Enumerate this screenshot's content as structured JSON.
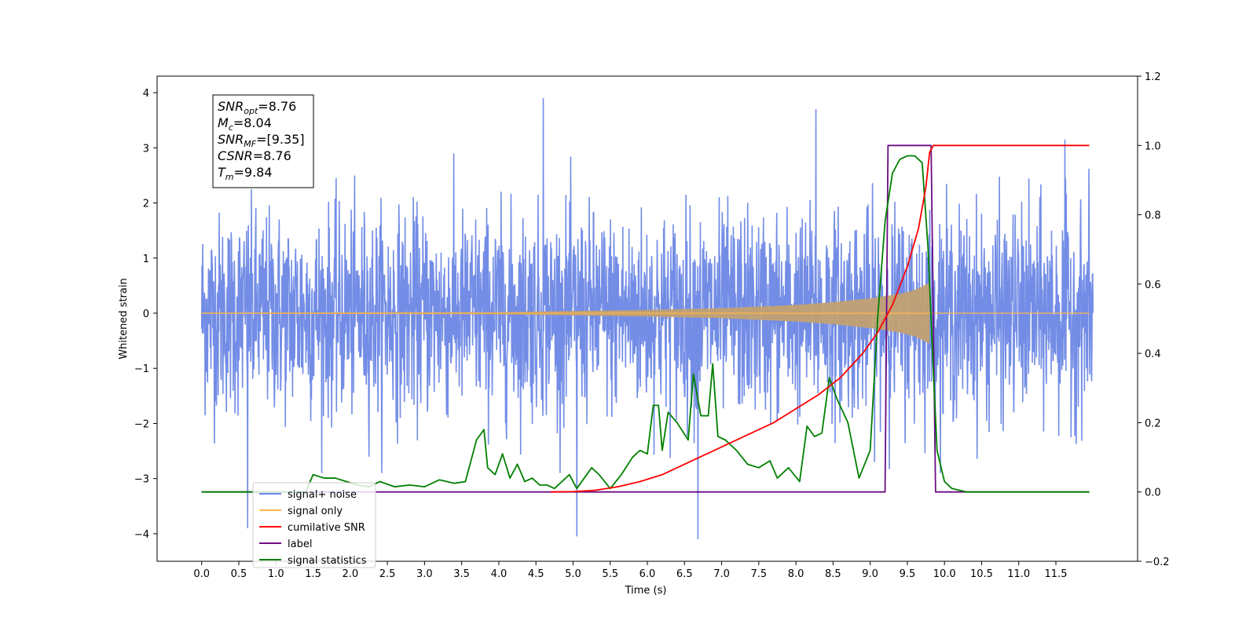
{
  "chart_data": {
    "type": "line",
    "title": "",
    "xlabel": "Time (s)",
    "ylabel": "Whitened strain",
    "xlim": [
      -0.6,
      12.6
    ],
    "ylim": [
      -4.5,
      4.3
    ],
    "y2lim": [
      -0.2,
      1.2
    ],
    "x_ticks": [
      "0.0",
      "0.5",
      "1.0",
      "1.5",
      "2.0",
      "2.5",
      "3.0",
      "3.5",
      "4.0",
      "4.5",
      "5.0",
      "5.5",
      "6.0",
      "6.5",
      "7.0",
      "7.5",
      "8.0",
      "8.5",
      "9.0",
      "9.5",
      "10.0",
      "10.5",
      "11.0",
      "11.5"
    ],
    "y_ticks": [
      "4",
      "3",
      "2",
      "1",
      "0",
      "−1",
      "−2",
      "−3",
      "−4"
    ],
    "y2_ticks": [
      "1.2",
      "1.0",
      "0.8",
      "0.6",
      "0.4",
      "0.2",
      "0.0",
      "−0.2"
    ],
    "grid": false,
    "legend_position": "lower-left",
    "annotations": [
      {
        "base": "SNR",
        "sub": "opt",
        "rest": "=8.76"
      },
      {
        "base": "M",
        "sub": "c",
        "rest": "=8.04"
      },
      {
        "base": "SNR",
        "sub": "MF",
        "rest": "=[9.35]"
      },
      {
        "base": "CSNR",
        "sub": "",
        "rest": "=8.76"
      },
      {
        "base": "T",
        "sub": "m",
        "rest": "=9.84"
      }
    ],
    "series": [
      {
        "name": "signal+ noise",
        "color": "#6b87e5",
        "axis": "left",
        "x_range": [
          0.0,
          12.0
        ],
        "amplitude_sd": 0.9,
        "notable_peaks": [
          [
            4.6,
            3.9
          ],
          [
            8.27,
            3.7
          ],
          [
            11.62,
            3.15
          ],
          [
            6.68,
            -4.1
          ],
          [
            5.05,
            -4.05
          ],
          [
            0.62,
            -3.9
          ]
        ]
      },
      {
        "name": "signal only",
        "color": "#ffb74d",
        "axis": "left",
        "description": "chirp",
        "points": [
          [
            0.0,
            0.01
          ],
          [
            4.0,
            0.02
          ],
          [
            6.0,
            0.06
          ],
          [
            7.0,
            0.09
          ],
          [
            8.0,
            0.15
          ],
          [
            8.5,
            0.2
          ],
          [
            9.0,
            0.27
          ],
          [
            9.4,
            0.35
          ],
          [
            9.6,
            0.42
          ],
          [
            9.75,
            0.52
          ],
          [
            9.8,
            0.55
          ],
          [
            9.82,
            0.0
          ]
        ]
      },
      {
        "name": "cumilative SNR",
        "color": "#ff0000",
        "axis": "right",
        "points": [
          [
            4.7,
            0.0
          ],
          [
            5.0,
            0.001
          ],
          [
            5.3,
            0.005
          ],
          [
            5.6,
            0.015
          ],
          [
            5.9,
            0.03
          ],
          [
            6.2,
            0.05
          ],
          [
            6.5,
            0.08
          ],
          [
            6.8,
            0.11
          ],
          [
            7.1,
            0.14
          ],
          [
            7.4,
            0.17
          ],
          [
            7.7,
            0.2
          ],
          [
            8.0,
            0.24
          ],
          [
            8.3,
            0.28
          ],
          [
            8.6,
            0.33
          ],
          [
            8.9,
            0.4
          ],
          [
            9.1,
            0.46
          ],
          [
            9.3,
            0.54
          ],
          [
            9.5,
            0.65
          ],
          [
            9.65,
            0.76
          ],
          [
            9.75,
            0.88
          ],
          [
            9.8,
            0.98
          ],
          [
            9.85,
            1.0
          ],
          [
            11.95,
            1.0
          ]
        ]
      },
      {
        "name": "label",
        "color": "#6a0d83",
        "axis": "right",
        "points": [
          [
            0.0,
            0.0
          ],
          [
            9.2,
            0.0
          ],
          [
            9.24,
            1.0
          ],
          [
            9.82,
            1.0
          ],
          [
            9.88,
            0.0
          ],
          [
            11.95,
            0.0
          ]
        ]
      },
      {
        "name": "signal statistics",
        "color": "#008000",
        "axis": "right",
        "points": [
          [
            0.0,
            0.0
          ],
          [
            1.4,
            0.0
          ],
          [
            1.5,
            0.05
          ],
          [
            1.65,
            0.04
          ],
          [
            1.8,
            0.04
          ],
          [
            1.95,
            0.03
          ],
          [
            2.1,
            0.02
          ],
          [
            2.25,
            0.015
          ],
          [
            2.4,
            0.03
          ],
          [
            2.6,
            0.015
          ],
          [
            2.8,
            0.02
          ],
          [
            3.0,
            0.015
          ],
          [
            3.2,
            0.035
          ],
          [
            3.4,
            0.025
          ],
          [
            3.55,
            0.03
          ],
          [
            3.7,
            0.15
          ],
          [
            3.8,
            0.18
          ],
          [
            3.85,
            0.07
          ],
          [
            3.95,
            0.05
          ],
          [
            4.05,
            0.11
          ],
          [
            4.15,
            0.04
          ],
          [
            4.25,
            0.08
          ],
          [
            4.35,
            0.03
          ],
          [
            4.45,
            0.04
          ],
          [
            4.55,
            0.02
          ],
          [
            4.65,
            0.02
          ],
          [
            4.75,
            0.01
          ],
          [
            4.85,
            0.03
          ],
          [
            4.95,
            0.05
          ],
          [
            5.05,
            0.01
          ],
          [
            5.15,
            0.04
          ],
          [
            5.25,
            0.07
          ],
          [
            5.35,
            0.05
          ],
          [
            5.5,
            0.01
          ],
          [
            5.65,
            0.05
          ],
          [
            5.8,
            0.1
          ],
          [
            5.9,
            0.12
          ],
          [
            6.0,
            0.11
          ],
          [
            6.08,
            0.25
          ],
          [
            6.15,
            0.25
          ],
          [
            6.2,
            0.12
          ],
          [
            6.28,
            0.23
          ],
          [
            6.4,
            0.2
          ],
          [
            6.55,
            0.15
          ],
          [
            6.62,
            0.34
          ],
          [
            6.72,
            0.22
          ],
          [
            6.82,
            0.22
          ],
          [
            6.88,
            0.37
          ],
          [
            6.95,
            0.16
          ],
          [
            7.05,
            0.15
          ],
          [
            7.2,
            0.12
          ],
          [
            7.35,
            0.08
          ],
          [
            7.5,
            0.07
          ],
          [
            7.65,
            0.09
          ],
          [
            7.75,
            0.04
          ],
          [
            7.9,
            0.07
          ],
          [
            8.05,
            0.03
          ],
          [
            8.15,
            0.19
          ],
          [
            8.25,
            0.16
          ],
          [
            8.35,
            0.17
          ],
          [
            8.45,
            0.33
          ],
          [
            8.55,
            0.27
          ],
          [
            8.7,
            0.2
          ],
          [
            8.85,
            0.04
          ],
          [
            9.0,
            0.12
          ],
          [
            9.1,
            0.5
          ],
          [
            9.2,
            0.78
          ],
          [
            9.3,
            0.92
          ],
          [
            9.4,
            0.96
          ],
          [
            9.5,
            0.97
          ],
          [
            9.6,
            0.97
          ],
          [
            9.7,
            0.95
          ],
          [
            9.78,
            0.7
          ],
          [
            9.85,
            0.35
          ],
          [
            9.9,
            0.12
          ],
          [
            10.0,
            0.03
          ],
          [
            10.1,
            0.01
          ],
          [
            10.3,
            0.0
          ],
          [
            11.95,
            0.0
          ]
        ]
      }
    ]
  }
}
